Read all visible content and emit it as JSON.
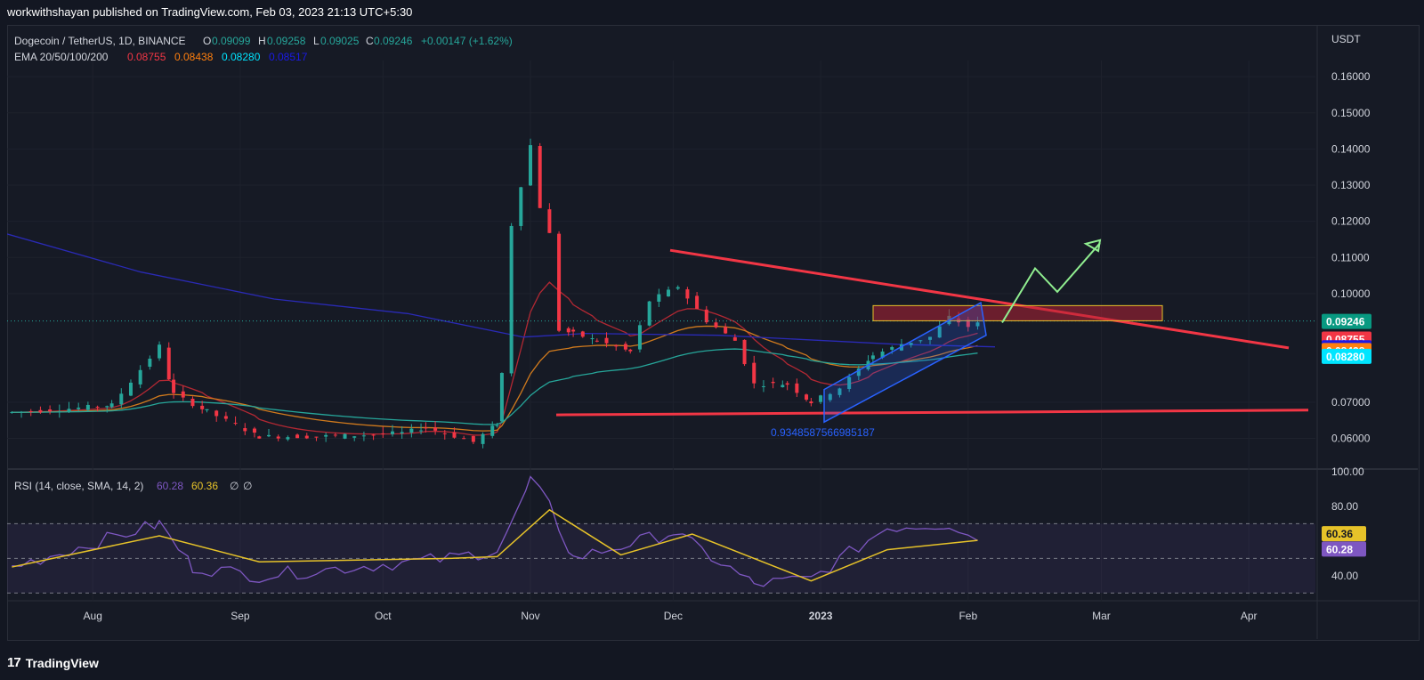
{
  "publisher": "workwithshayan published on TradingView.com, Feb 03, 2023 21:13 UTC+5:30",
  "legend": {
    "symbol": "Dogecoin / TetherUS, 1D, BINANCE",
    "o_label": "O",
    "o": "0.09099",
    "h_label": "H",
    "h": "0.09258",
    "l_label": "L",
    "l": "0.09025",
    "c_label": "C",
    "c": "0.09246",
    "change": "+0.00147 (+1.62%)",
    "ema_label": "EMA 20/50/100/200",
    "ema20": "0.08755",
    "ema50": "0.08438",
    "ema100": "0.08280",
    "ema200": "0.08517",
    "rsi_label": "RSI (14, close, SMA, 14, 2)",
    "rsi": "60.28",
    "rsi_ma": "60.36",
    "rsi_x1": "∅",
    "rsi_x2": "∅"
  },
  "axis": {
    "currency": "USDT",
    "price_ticks": [
      "0.16000",
      "0.15000",
      "0.14000",
      "0.13000",
      "0.12000",
      "0.11000",
      "0.10000",
      "0.07000",
      "0.06000"
    ],
    "rsi_ticks": [
      "100.00",
      "80.00",
      "40.00"
    ],
    "time_ticks": [
      "Aug",
      "Sep",
      "Oct",
      "Nov",
      "Dec",
      "2023",
      "Feb",
      "Mar",
      "Apr"
    ]
  },
  "price_badges": [
    {
      "text": "0.09246",
      "color": "#089981",
      "value": 0.09246
    },
    {
      "text": "0.08755",
      "color": "#f23645",
      "value": 0.08755
    },
    {
      "text": "0.08517",
      "color": "#1a1ae6",
      "value": 0.08517
    },
    {
      "text": "0.08438",
      "color": "#ff7f0e",
      "value": 0.08438
    },
    {
      "text": "0.08280",
      "color": "#00e5ff",
      "value": 0.0828
    }
  ],
  "rsi_badges": [
    {
      "text": "60.36",
      "color": "#e6c229",
      "value": 60.36
    },
    {
      "text": "60.28",
      "color": "#7e57c2",
      "value": 60.28
    }
  ],
  "annotation": "0.9348587566985187",
  "footer": {
    "logo": "17",
    "brand": "TradingView"
  },
  "colors": {
    "up": "#26a69a",
    "down": "#f23645",
    "ema20": "#b22833",
    "ema50": "#d07a1d",
    "ema100": "#26a69a",
    "ema200": "#2a2ab5",
    "rsi": "#7e57c2",
    "rsi_ma": "#e6c229",
    "trend": "#f23645",
    "channel": "#2962ff",
    "arrow": "#90ee90",
    "zone": "#e6c229"
  },
  "chart_data": {
    "type": "candlestick",
    "title": "Dogecoin / TetherUS, 1D, BINANCE",
    "x_range": [
      "2022-07-14",
      "2023-04-15"
    ],
    "ylim": [
      0.052,
      0.162
    ],
    "candles": [
      [
        "2022-07-15",
        0.0645,
        0.0672
      ],
      [
        "2022-07-25",
        0.0662,
        0.068
      ],
      [
        "2022-08-05",
        0.068,
        0.0692
      ],
      [
        "2022-08-15",
        0.076,
        0.0855
      ],
      [
        "2022-08-18",
        0.0825,
        0.0722
      ],
      [
        "2022-08-25",
        0.069,
        0.0675
      ],
      [
        "2022-09-05",
        0.0625,
        0.0605
      ],
      [
        "2022-09-15",
        0.0612,
        0.0605
      ],
      [
        "2022-09-25",
        0.0612,
        0.0608
      ],
      [
        "2022-10-05",
        0.0625,
        0.0615
      ],
      [
        "2022-10-10",
        0.0618,
        0.063
      ],
      [
        "2022-10-20",
        0.0598,
        0.059
      ],
      [
        "2022-10-25",
        0.0598,
        0.064
      ],
      [
        "2022-10-26",
        0.0635,
        0.078
      ],
      [
        "2022-10-28",
        0.084,
        0.119
      ],
      [
        "2022-11-01",
        0.115,
        0.141
      ],
      [
        "2022-11-03",
        0.131,
        0.124
      ],
      [
        "2022-11-05",
        0.126,
        0.1165
      ],
      [
        "2022-11-07",
        0.11,
        0.09
      ],
      [
        "2022-11-10",
        0.08,
        0.089
      ],
      [
        "2022-11-15",
        0.088,
        0.087
      ],
      [
        "2022-11-22",
        0.081,
        0.084
      ],
      [
        "2022-11-26",
        0.084,
        0.098
      ],
      [
        "2022-12-02",
        0.103,
        0.102
      ],
      [
        "2022-12-08",
        0.096,
        0.0925
      ],
      [
        "2022-12-14",
        0.089,
        0.087
      ],
      [
        "2022-12-18",
        0.08,
        0.075
      ],
      [
        "2022-12-25",
        0.076,
        0.075
      ],
      [
        "2022-12-30",
        0.069,
        0.07
      ],
      [
        "2023-01-05",
        0.071,
        0.074
      ],
      [
        "2023-01-12",
        0.08,
        0.083
      ],
      [
        "2023-01-18",
        0.081,
        0.086
      ],
      [
        "2023-01-24",
        0.087,
        0.088
      ],
      [
        "2023-01-28",
        0.088,
        0.0935
      ],
      [
        "2023-02-01",
        0.09,
        0.0909
      ],
      [
        "2023-02-03",
        0.09099,
        0.09246
      ]
    ],
    "series": [
      {
        "name": "EMA 20",
        "last": 0.08755
      },
      {
        "name": "EMA 50",
        "last": 0.08438
      },
      {
        "name": "EMA 100",
        "last": 0.0828
      },
      {
        "name": "EMA 200",
        "last": 0.08517
      },
      {
        "name": "RSI",
        "last": 60.28
      },
      {
        "name": "RSI SMA",
        "last": 60.36
      }
    ],
    "rsi_ylim": [
      25,
      100
    ],
    "rsi_levels": [
      70,
      50,
      30
    ],
    "rsi_points": [
      [
        "2022-07-15",
        45
      ],
      [
        "2022-08-15",
        70
      ],
      [
        "2022-08-22",
        45
      ],
      [
        "2022-09-05",
        40
      ],
      [
        "2022-10-15",
        50
      ],
      [
        "2022-10-25",
        55
      ],
      [
        "2022-10-29",
        75
      ],
      [
        "2022-11-01",
        95
      ],
      [
        "2022-11-05",
        80
      ],
      [
        "2022-11-10",
        50
      ],
      [
        "2022-12-01",
        65
      ],
      [
        "2022-12-18",
        35
      ],
      [
        "2022-12-30",
        38
      ],
      [
        "2023-01-15",
        68
      ],
      [
        "2023-01-28",
        70
      ],
      [
        "2023-02-03",
        60.28
      ]
    ],
    "rsi_ma_points": [
      [
        "2022-07-15",
        45
      ],
      [
        "2022-08-15",
        63
      ],
      [
        "2022-09-05",
        48
      ],
      [
        "2022-10-15",
        50
      ],
      [
        "2022-10-25",
        51
      ],
      [
        "2022-11-05",
        78
      ],
      [
        "2022-11-20",
        52
      ],
      [
        "2022-12-05",
        64
      ],
      [
        "2022-12-30",
        37
      ],
      [
        "2023-01-15",
        55
      ],
      [
        "2023-02-03",
        60.36
      ]
    ]
  }
}
